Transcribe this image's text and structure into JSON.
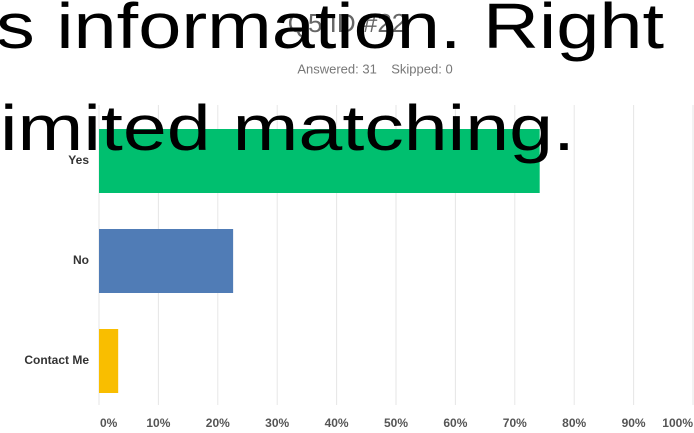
{
  "chart_data": {
    "type": "barh",
    "title": "Q5 ID #22",
    "subtitle": "Answered: 31    Skipped: 0",
    "annotations": [
      "s information. Right",
      "imited matching."
    ],
    "categories": [
      "Yes",
      "No",
      "Contact Me"
    ],
    "values": [
      74.19,
      22.58,
      3.23
    ],
    "colors": [
      "#00bf6f",
      "#507cb6",
      "#f9be00"
    ],
    "xlim": [
      0,
      100
    ],
    "xticks": [
      {
        "value": 0,
        "label": "0%"
      },
      {
        "value": 10,
        "label": "10%"
      },
      {
        "value": 20,
        "label": "20%"
      },
      {
        "value": 30,
        "label": "30%"
      },
      {
        "value": 40,
        "label": "40%"
      },
      {
        "value": 50,
        "label": "50%"
      },
      {
        "value": 60,
        "label": "60%"
      },
      {
        "value": 70,
        "label": "70%"
      },
      {
        "value": 80,
        "label": "80%"
      },
      {
        "value": 90,
        "label": "90%"
      },
      {
        "value": 100,
        "label": "100%"
      }
    ],
    "grid": true
  }
}
